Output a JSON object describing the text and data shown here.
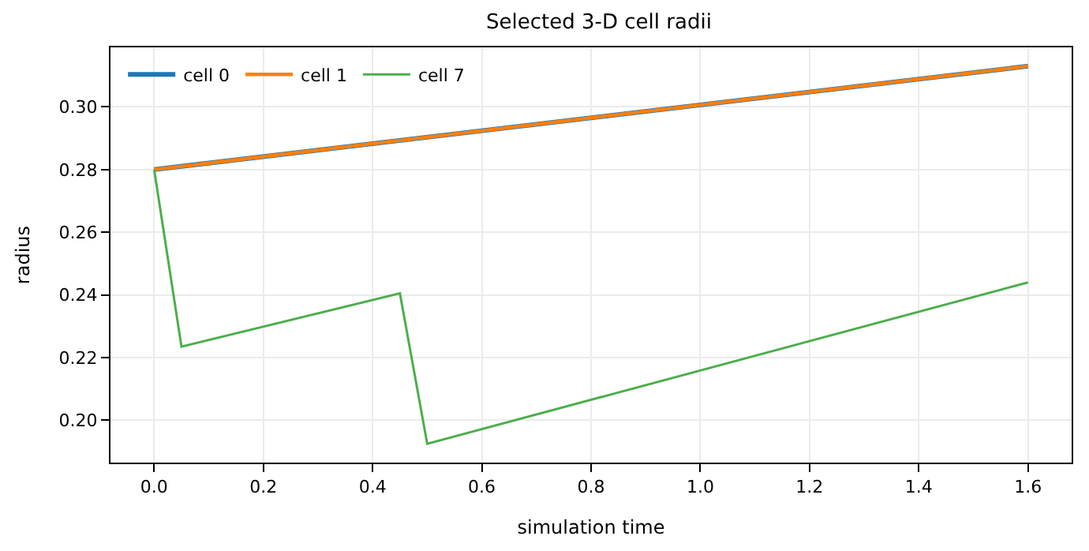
{
  "chart_data": {
    "type": "line",
    "title": "Selected 3-D cell radii",
    "xlabel": "simulation time",
    "ylabel": "radius",
    "xlim": [
      -0.08,
      1.68
    ],
    "ylim": [
      0.1865,
      0.319
    ],
    "xticks": [
      {
        "value": 0,
        "label": "0.0"
      },
      0.2,
      0.4,
      0.6,
      0.8,
      {
        "value": 1,
        "label": "1.0"
      },
      1.2,
      1.4,
      1.6
    ],
    "yticks": [
      {
        "value": 0.2,
        "label": "0.20"
      },
      {
        "value": 0.22,
        "label": "0.22"
      },
      {
        "value": 0.24,
        "label": "0.24"
      },
      {
        "value": 0.26,
        "label": "0.26"
      },
      {
        "value": 0.28,
        "label": "0.28"
      },
      {
        "value": 0.3,
        "label": "0.30"
      }
    ],
    "grid": true,
    "legend": "top left",
    "line_style": "solid",
    "marker": "none",
    "series": [
      {
        "name": "cell 0",
        "color": "#1f77b4",
        "x": [
          0,
          1.6
        ],
        "values": [
          0.28,
          0.313
        ]
      },
      {
        "name": "cell 1",
        "color": "#ff7f0e",
        "x": [
          0,
          1.6
        ],
        "values": [
          0.28,
          0.313
        ]
      },
      {
        "name": "cell 7",
        "color": "#4cae4c",
        "x": [
          0,
          0.05,
          0.45,
          0.5,
          1.6
        ],
        "values": [
          0.28,
          0.2235,
          0.2405,
          0.1925,
          0.244
        ]
      }
    ]
  }
}
